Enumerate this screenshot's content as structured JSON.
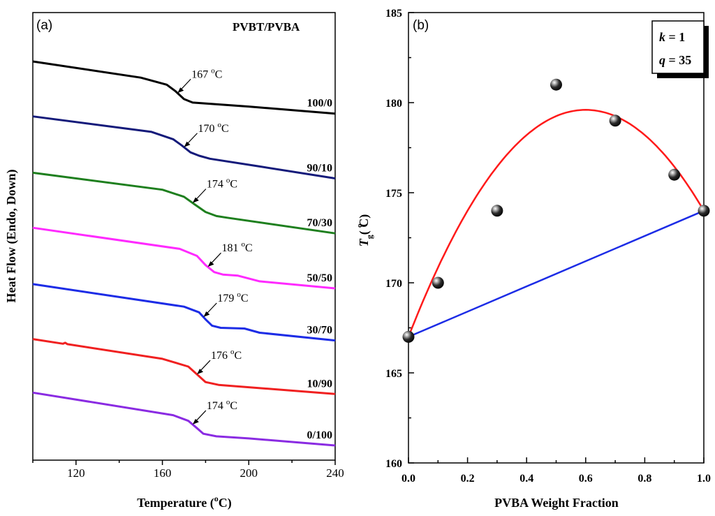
{
  "chart_data": [
    {
      "type": "line",
      "panel_label": "(a)",
      "title": "PVBT/PVBA",
      "xlabel": "Temperature (°C)",
      "xlabel_main": "Temperature (",
      "xlabel_sup": "o",
      "xlabel_tail": "C)",
      "ylabel": "Heat Flow (Endo, Down)",
      "xlim": [
        100,
        240
      ],
      "xticks": [
        120,
        160,
        200,
        240
      ],
      "y_units": "arbitrary (stacked DSC traces)",
      "series": [
        {
          "name": "100/0",
          "color": "#000000",
          "tg_label": "167 °C",
          "tg_num": "167 ",
          "tg_sup": "o",
          "tg_unit": "C",
          "tg": 167,
          "x": [
            100,
            150,
            162,
            166,
            170,
            174,
            178,
            200,
            240
          ],
          "y": [
            100,
            88.5,
            83.5,
            79,
            73.3,
            70.8,
            70.4,
            68,
            63
          ]
        },
        {
          "name": "90/10",
          "color": "#141a7a",
          "tg_label": "170 °C",
          "tg_num": "170 ",
          "tg_sup": "o",
          "tg_unit": "C",
          "tg": 170,
          "x": [
            100,
            155,
            165,
            169,
            173,
            177,
            182,
            205,
            240
          ],
          "y": [
            61,
            50,
            44.8,
            40.4,
            35.5,
            33.1,
            31,
            25.5,
            17
          ]
        },
        {
          "name": "70/30",
          "color": "#1e7f1e",
          "tg_label": "174 °C",
          "tg_num": "174 ",
          "tg_sup": "o",
          "tg_unit": "C",
          "tg": 174,
          "x": [
            100,
            160,
            170,
            175,
            180,
            185,
            190,
            240
          ],
          "y": [
            21,
            9,
            4,
            -1.5,
            -6.8,
            -9.7,
            -10.9,
            -22
          ]
        },
        {
          "name": "50/50",
          "color": "#ff2aff",
          "tg_label": "181 °C",
          "tg_num": "181 ",
          "tg_sup": "o",
          "tg_unit": "C",
          "tg": 181,
          "x": [
            100,
            168,
            176,
            180,
            184,
            188,
            195,
            205,
            240
          ],
          "y": [
            -18,
            -33,
            -38,
            -44.5,
            -49.5,
            -51.2,
            -52,
            -56,
            -61
          ]
        },
        {
          "name": "30/70",
          "color": "#1c2ce6",
          "tg_label": "179 °C",
          "tg_num": "179 ",
          "tg_sup": "o",
          "tg_unit": "C",
          "tg": 179,
          "x": [
            100,
            170,
            177,
            180,
            183,
            187,
            198,
            205,
            240
          ],
          "y": [
            -58,
            -74,
            -78,
            -83,
            -87.5,
            -89,
            -89.5,
            -92.5,
            -98
          ]
        },
        {
          "name": "10/90",
          "color": "#f02020",
          "tg_label": "176 °C",
          "tg_num": "176 ",
          "tg_sup": "o",
          "tg_unit": "C",
          "tg": 176,
          "x": [
            100,
            114,
            115,
            116,
            160,
            172,
            176,
            180,
            186,
            240
          ],
          "y": [
            -97,
            -100.3,
            -99.6,
            -100.6,
            -111,
            -116.5,
            -122,
            -127.5,
            -129.5,
            -136
          ]
        },
        {
          "name": "0/100",
          "color": "#8a2be2",
          "tg_label": "174 °C",
          "tg_num": "174 ",
          "tg_sup": "o",
          "tg_unit": "C",
          "tg": 174,
          "x": [
            100,
            165,
            172,
            176,
            179,
            185,
            200,
            240
          ],
          "y": [
            -135,
            -151,
            -155,
            -160.2,
            -164.2,
            -166,
            -167.5,
            -172.5
          ]
        }
      ]
    },
    {
      "type": "scatter",
      "panel_label": "(b)",
      "xlabel": "PVBA Weight Fraction",
      "ylabel": "Tg (°C)",
      "ylabel_main": "T",
      "ylabel_sub": "g",
      "ylabel_paren": "( C)",
      "ylabel_sup": "o",
      "xlim": [
        0.0,
        1.0
      ],
      "ylim": [
        160,
        185
      ],
      "xticks": [
        0.0,
        0.2,
        0.4,
        0.6,
        0.8,
        1.0
      ],
      "xtick_labels": [
        "0.0",
        "0.2",
        "0.4",
        "0.6",
        "0.8",
        "1.0"
      ],
      "yticks": [
        160,
        165,
        170,
        175,
        180,
        185
      ],
      "points": {
        "x": [
          0.0,
          0.1,
          0.3,
          0.5,
          0.7,
          0.9,
          1.0
        ],
        "y": [
          167,
          170,
          174,
          181,
          179,
          176,
          174
        ]
      },
      "kwok_fit": {
        "color": "#ff1a1a",
        "k": 1,
        "q": 35,
        "tg1": 167,
        "tg2": 174
      },
      "linear_rule": {
        "color": "#1c2ce6",
        "x": [
          0.0,
          1.0
        ],
        "y": [
          167,
          174
        ]
      },
      "legend": {
        "position": "top-right",
        "k_var": "k",
        "k_text": " = 1",
        "q_var": "q",
        "q_text": " = 35"
      }
    }
  ]
}
